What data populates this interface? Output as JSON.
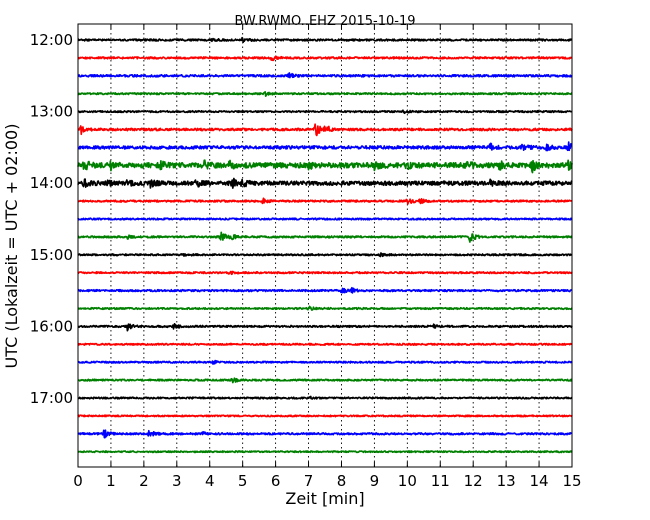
{
  "chart_data": {
    "type": "line",
    "title": "BW.RWMO..EHZ 2015-10-19",
    "xlabel": "Zeit  [min]",
    "ylabel": "UTC (Lokalzeit = UTC + 02:00)",
    "xlim": [
      0,
      15
    ],
    "xticks": [
      "0",
      "1",
      "2",
      "3",
      "4",
      "5",
      "6",
      "7",
      "8",
      "9",
      "10",
      "11",
      "12",
      "13",
      "14",
      "15"
    ],
    "yticks": [
      "12:00",
      "13:00",
      "14:00",
      "15:00",
      "16:00",
      "17:00"
    ],
    "grid": "vertical dotted",
    "row_start": "12:00",
    "row_minutes": 15,
    "row_colors": [
      "#000000",
      "#ff0000",
      "#0000ff",
      "#008000"
    ],
    "series": [
      {
        "row": 0,
        "time": "12:00",
        "color": "#000000",
        "noise": 0.9,
        "events": [
          {
            "x": 4.1,
            "amp": 1.5
          },
          {
            "x": 5.0,
            "amp": 2
          }
        ]
      },
      {
        "row": 1,
        "time": "12:15",
        "color": "#ff0000",
        "noise": 0.9,
        "events": [
          {
            "x": 5.9,
            "amp": 3
          }
        ]
      },
      {
        "row": 2,
        "time": "12:30",
        "color": "#0000ff",
        "noise": 1.0,
        "events": [
          {
            "x": 6.4,
            "amp": 2.5
          }
        ]
      },
      {
        "row": 3,
        "time": "12:45",
        "color": "#008000",
        "noise": 0.8,
        "events": [
          {
            "x": 5.7,
            "amp": 2
          }
        ]
      },
      {
        "row": 4,
        "time": "13:00",
        "color": "#000000",
        "noise": 0.8,
        "events": [
          {
            "x": 9.9,
            "amp": 1.5
          }
        ]
      },
      {
        "row": 5,
        "time": "13:15",
        "color": "#ff0000",
        "noise": 1.1,
        "events": [
          {
            "x": 0.1,
            "amp": 4
          },
          {
            "x": 7.2,
            "amp": 8
          },
          {
            "x": 7.5,
            "amp": 5
          }
        ]
      },
      {
        "row": 6,
        "time": "13:30",
        "color": "#0000ff",
        "noise": 1.5,
        "events": [
          {
            "x": 12.5,
            "amp": 3.5
          },
          {
            "x": 13.5,
            "amp": 4
          },
          {
            "x": 14.2,
            "amp": 3
          },
          {
            "x": 14.9,
            "amp": 4
          }
        ]
      },
      {
        "row": 7,
        "time": "13:45",
        "color": "#008000",
        "noise": 2.5,
        "events": [
          {
            "x": 0.2,
            "amp": 4
          },
          {
            "x": 1.0,
            "amp": 3
          },
          {
            "x": 2.5,
            "amp": 3
          },
          {
            "x": 3.8,
            "amp": 4
          },
          {
            "x": 4.6,
            "amp": 3
          },
          {
            "x": 7.0,
            "amp": 3
          },
          {
            "x": 9.0,
            "amp": 3
          },
          {
            "x": 10.0,
            "amp": 3
          },
          {
            "x": 11.8,
            "amp": 3
          },
          {
            "x": 12.8,
            "amp": 3.5
          },
          {
            "x": 13.8,
            "amp": 5
          },
          {
            "x": 14.9,
            "amp": 4
          }
        ]
      },
      {
        "row": 8,
        "time": "14:00",
        "color": "#000000",
        "noise": 2.0,
        "events": [
          {
            "x": 0.2,
            "amp": 3
          },
          {
            "x": 0.8,
            "amp": 3
          },
          {
            "x": 1.5,
            "amp": 3
          },
          {
            "x": 2.2,
            "amp": 3.5
          },
          {
            "x": 3.6,
            "amp": 3.5
          },
          {
            "x": 4.7,
            "amp": 4
          },
          {
            "x": 5.0,
            "amp": 3
          },
          {
            "x": 12.5,
            "amp": 2.5
          }
        ]
      },
      {
        "row": 9,
        "time": "14:15",
        "color": "#ff0000",
        "noise": 0.9,
        "events": [
          {
            "x": 5.6,
            "amp": 2.5
          },
          {
            "x": 10.0,
            "amp": 4
          },
          {
            "x": 10.4,
            "amp": 2
          }
        ]
      },
      {
        "row": 10,
        "time": "14:30",
        "color": "#0000ff",
        "noise": 0.8,
        "events": []
      },
      {
        "row": 11,
        "time": "14:45",
        "color": "#008000",
        "noise": 0.9,
        "events": [
          {
            "x": 1.5,
            "amp": 1.5
          },
          {
            "x": 4.35,
            "amp": 6
          },
          {
            "x": 4.7,
            "amp": 2
          },
          {
            "x": 11.9,
            "amp": 6
          }
        ]
      },
      {
        "row": 12,
        "time": "15:00",
        "color": "#000000",
        "noise": 0.8,
        "events": [
          {
            "x": 3.2,
            "amp": 1.5
          },
          {
            "x": 9.2,
            "amp": 1.5
          }
        ]
      },
      {
        "row": 13,
        "time": "15:15",
        "color": "#ff0000",
        "noise": 0.8,
        "events": [
          {
            "x": 4.6,
            "amp": 1.5
          }
        ]
      },
      {
        "row": 14,
        "time": "15:30",
        "color": "#0000ff",
        "noise": 0.9,
        "events": [
          {
            "x": 8.0,
            "amp": 3
          },
          {
            "x": 8.3,
            "amp": 2
          }
        ]
      },
      {
        "row": 15,
        "time": "15:45",
        "color": "#008000",
        "noise": 0.8,
        "events": [
          {
            "x": 7.0,
            "amp": 2
          }
        ]
      },
      {
        "row": 16,
        "time": "16:00",
        "color": "#000000",
        "noise": 0.9,
        "events": [
          {
            "x": 1.5,
            "amp": 3.5
          },
          {
            "x": 2.9,
            "amp": 2.5
          },
          {
            "x": 10.8,
            "amp": 1.5
          }
        ]
      },
      {
        "row": 17,
        "time": "16:15",
        "color": "#ff0000",
        "noise": 0.8,
        "events": []
      },
      {
        "row": 18,
        "time": "16:30",
        "color": "#0000ff",
        "noise": 0.8,
        "events": [
          {
            "x": 4.1,
            "amp": 1.5
          }
        ]
      },
      {
        "row": 19,
        "time": "16:45",
        "color": "#008000",
        "noise": 0.8,
        "events": [
          {
            "x": 4.7,
            "amp": 2.5
          }
        ]
      },
      {
        "row": 20,
        "time": "17:00",
        "color": "#000000",
        "noise": 0.8,
        "events": [
          {
            "x": 7.0,
            "amp": 1.5
          }
        ]
      },
      {
        "row": 21,
        "time": "17:15",
        "color": "#ff0000",
        "noise": 0.7,
        "events": []
      },
      {
        "row": 22,
        "time": "17:30",
        "color": "#0000ff",
        "noise": 0.9,
        "events": [
          {
            "x": 0.8,
            "amp": 4
          },
          {
            "x": 2.15,
            "amp": 4
          },
          {
            "x": 3.8,
            "amp": 1.5
          }
        ]
      },
      {
        "row": 23,
        "time": "17:45",
        "color": "#008000",
        "noise": 0.7,
        "events": []
      }
    ]
  }
}
